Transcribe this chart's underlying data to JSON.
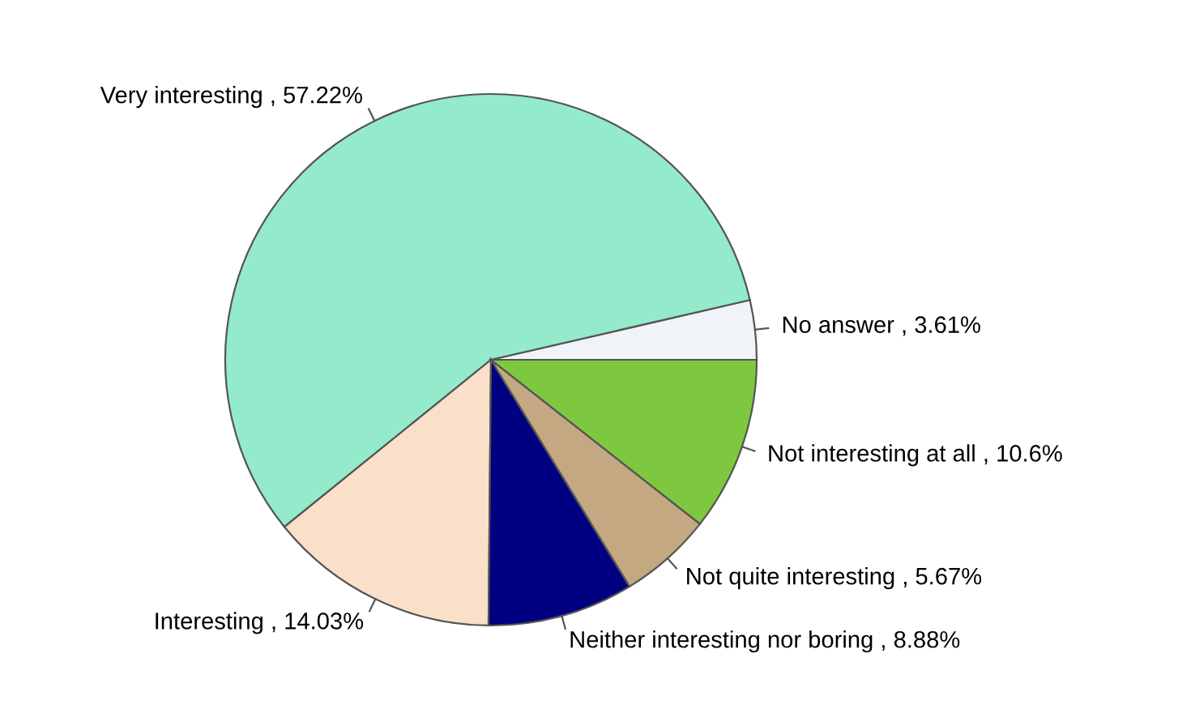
{
  "chart_data": {
    "type": "pie",
    "categories": [
      "No answer",
      "Very interesting",
      "Interesting",
      "Neither interesting nor boring",
      "Not quite interesting",
      "Not interesting at all"
    ],
    "values": [
      3.61,
      57.22,
      14.03,
      8.88,
      5.67,
      10.6
    ],
    "value_labels": [
      "3.61%",
      "57.22%",
      "14.03%",
      "8.88%",
      "5.67%",
      "10.6%"
    ],
    "colors": [
      "#f0f4f8",
      "#93ebcb",
      "#fae0c8",
      "#000080",
      "#c4a882",
      "#7ec83f"
    ]
  }
}
